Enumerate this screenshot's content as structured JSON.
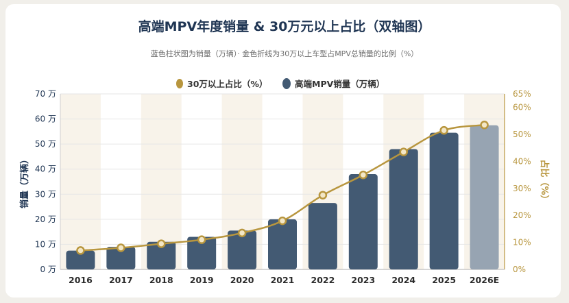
{
  "title": "高端MPV年度销量 & 30万元以上占比（双轴图）",
  "subtitle": "蓝色柱状图为销量（万辆）· 金色折线为30万以上车型占MPV总销量的比例（%）",
  "colors": {
    "bar": "#435a73",
    "bar_forecast": "#97a4b2",
    "line": "#b8963e",
    "point_fill": "#f3e7c7",
    "title": "#1f3553",
    "left_axis": "#1f3553",
    "right_axis": "#b8963e",
    "band": "#f8f3ea"
  },
  "chart_data": {
    "type": "bar",
    "title": "高端MPV年度销量 & 30万元以上占比（双轴图）",
    "categories": [
      "2016",
      "2017",
      "2018",
      "2019",
      "2020",
      "2021",
      "2022",
      "2023",
      "2024",
      "2025",
      "2026E"
    ],
    "series": [
      {
        "name": "高端MPV销量（万辆）",
        "type": "bar",
        "axis": "left",
        "values": [
          7.5,
          9,
          11,
          13,
          15.5,
          20,
          26.5,
          38,
          48,
          54.5,
          57.5
        ],
        "forecast_categories": [
          "2026E"
        ]
      },
      {
        "name": "30万以上占比（%）",
        "type": "line",
        "axis": "right",
        "values": [
          7,
          8,
          9.5,
          11,
          13.5,
          18,
          27.5,
          35,
          43.5,
          51.5,
          53.5
        ]
      }
    ],
    "left_axis": {
      "label": "销量（万辆）",
      "ticks": [
        "0 万",
        "10 万",
        "20 万",
        "30 万",
        "40 万",
        "50 万",
        "60 万",
        "70 万"
      ],
      "ylim": [
        0,
        70
      ]
    },
    "right_axis": {
      "label": "占比（%）",
      "ticks": [
        "0%",
        "10%",
        "20%",
        "30%",
        "40%",
        "50%",
        "60%",
        "65%"
      ],
      "ylim": [
        0,
        65
      ]
    },
    "legend": {
      "position": "top",
      "entries": [
        "30万以上占比（%）",
        "高端MPV销量（万辆）"
      ]
    },
    "grid": true
  }
}
